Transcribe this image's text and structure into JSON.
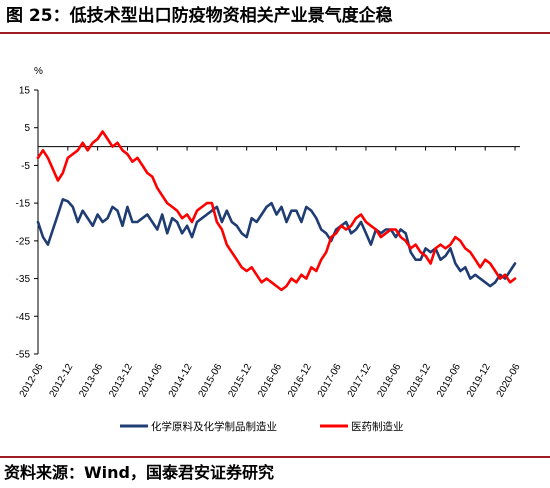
{
  "figure": {
    "title": "图 25：低技术型出口防疫物资相关产业景气度企稳",
    "source": "资料来源：Wind，国泰君安证券研究"
  },
  "chart_data": {
    "type": "line",
    "yunit": "%",
    "ylim": [
      -55,
      15
    ],
    "yticks": [
      15,
      5,
      -5,
      -15,
      -25,
      -35,
      -45,
      -55
    ],
    "xlim": [
      0,
      97
    ],
    "xtick_labels": [
      "2012-06",
      "2012-12",
      "2013-06",
      "2013-12",
      "2014-06",
      "2014-12",
      "2015-06",
      "2015-12",
      "2016-06",
      "2016-12",
      "2017-06",
      "2017-12",
      "2018-06",
      "2018-12",
      "2019-06",
      "2019-12",
      "2020-06"
    ],
    "xtick_positions": [
      0,
      6,
      12,
      18,
      24,
      30,
      36,
      42,
      48,
      54,
      60,
      66,
      72,
      78,
      84,
      90,
      96
    ],
    "grid": false,
    "legend_position": "bottom",
    "series": [
      {
        "name": "化学原料及化学制品制造业",
        "color": "#1f3c73",
        "values": [
          -20.0,
          -24.0,
          -26.0,
          -22.0,
          -18.0,
          -14.0,
          -14.5,
          -16.0,
          -20.0,
          -17.0,
          -19.0,
          -21.0,
          -18.0,
          -20.0,
          -19.0,
          -16.0,
          -17.0,
          -21.0,
          -16.0,
          -20.0,
          -20.0,
          -19.0,
          -18.0,
          -20.0,
          -22.0,
          -18.0,
          -23.0,
          -19.0,
          -20.0,
          -23.0,
          -21.0,
          -24.0,
          -20.0,
          -19.0,
          -18.0,
          -17.0,
          -16.0,
          -20.0,
          -17.0,
          -20.0,
          -21.0,
          -23.0,
          -24.0,
          -19.0,
          -20.0,
          -18.0,
          -16.0,
          -15.0,
          -18.0,
          -16.0,
          -20.0,
          -17.0,
          -17.0,
          -20.0,
          -16.0,
          -17.0,
          -19.0,
          -22.0,
          -23.0,
          -25.0,
          -22.0,
          -21.0,
          -20.0,
          -23.0,
          -22.0,
          -20.0,
          -23.0,
          -26.0,
          -22.0,
          -23.0,
          -22.0,
          -22.0,
          -24.0,
          -22.0,
          -23.0,
          -28.0,
          -30.0,
          -30.0,
          -27.0,
          -28.0,
          -27.0,
          -30.0,
          -29.0,
          -27.0,
          -31.0,
          -33.0,
          -32.0,
          -35.0,
          -34.0,
          -35.0,
          -36.0,
          -37.0,
          -36.0,
          -34.0,
          -35.0,
          -33.0,
          -31.0
        ]
      },
      {
        "name": "医药制造业",
        "color": "#ff0000",
        "values": [
          -3.0,
          -1.0,
          -3.0,
          -6.0,
          -9.0,
          -7.0,
          -3.0,
          -2.0,
          -1.0,
          1.0,
          -1.0,
          1.0,
          2.0,
          4.0,
          2.0,
          0.0,
          1.0,
          -1.0,
          -2.0,
          -4.0,
          -3.0,
          -5.0,
          -7.0,
          -8.0,
          -11.0,
          -13.0,
          -15.0,
          -16.0,
          -17.0,
          -19.0,
          -18.0,
          -20.0,
          -17.0,
          -16.0,
          -15.0,
          -15.0,
          -20.0,
          -22.0,
          -26.0,
          -28.0,
          -30.0,
          -32.0,
          -33.0,
          -32.0,
          -34.0,
          -36.0,
          -35.0,
          -36.0,
          -37.0,
          -38.0,
          -37.0,
          -35.0,
          -36.0,
          -34.0,
          -35.0,
          -32.0,
          -33.0,
          -30.0,
          -28.0,
          -24.0,
          -23.0,
          -21.0,
          -22.0,
          -21.0,
          -19.0,
          -18.0,
          -20.0,
          -21.0,
          -22.0,
          -24.0,
          -23.0,
          -22.0,
          -22.0,
          -24.0,
          -25.0,
          -27.0,
          -26.0,
          -28.0,
          -29.0,
          -31.0,
          -27.0,
          -26.0,
          -27.0,
          -26.0,
          -24.0,
          -25.0,
          -27.0,
          -28.0,
          -30.0,
          -32.0,
          -30.0,
          -31.0,
          -33.0,
          -35.0,
          -34.0,
          -36.0,
          -35.0
        ]
      }
    ]
  }
}
